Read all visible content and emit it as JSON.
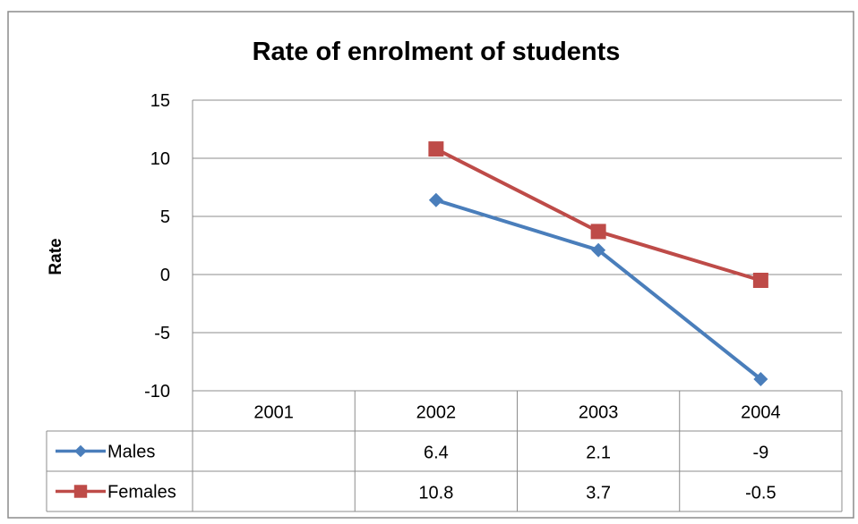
{
  "chart_data": {
    "type": "line",
    "title": "Rate of enrolment of students",
    "ylabel": "Rate",
    "xlabel": "",
    "categories": [
      "2001",
      "2002",
      "2003",
      "2004"
    ],
    "ylim": [
      -10,
      15
    ],
    "yticks": [
      15,
      10,
      5,
      0,
      -5,
      -10
    ],
    "grid": true,
    "legend": "data-table-left",
    "series": [
      {
        "name": "Males",
        "color": "#4a7ebb",
        "marker": "diamond",
        "values": [
          null,
          6.4,
          2.1,
          -9
        ],
        "labels": [
          "",
          "6.4",
          "2.1",
          "-9"
        ]
      },
      {
        "name": "Females",
        "color": "#be4b48",
        "marker": "square",
        "values": [
          null,
          10.8,
          3.7,
          -0.5
        ],
        "labels": [
          "",
          "10.8",
          "3.7",
          "-0.5"
        ]
      }
    ]
  }
}
